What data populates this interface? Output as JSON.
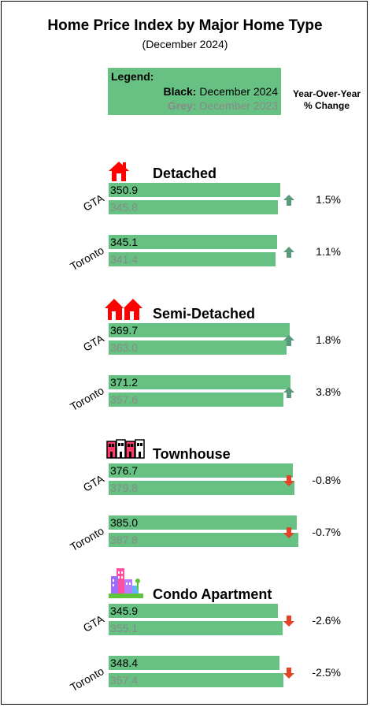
{
  "title": "Home Price Index by Major Home Type",
  "subtitle": "(December 2024)",
  "legend": {
    "title": "Legend:",
    "black_key": "Black:",
    "black_value": "December 2024",
    "grey_key": "Grey:",
    "grey_value": "December 2023"
  },
  "yoy_header": {
    "line1": "Year-Over-Year",
    "line2": "% Change"
  },
  "colors": {
    "bar": "#66c183",
    "up_arrow": "#5a9a7a",
    "down_arrow": "#e0452a",
    "prior_text": "#8a8a8a"
  },
  "chart_data": {
    "type": "bar",
    "orientation": "horizontal",
    "title": "Home Price Index by Major Home Type",
    "subtitle": "(December 2024)",
    "series_legend": [
      "Black: December 2024",
      "Grey: December 2023"
    ],
    "groups": [
      {
        "name": "Detached",
        "icon": "house-icon",
        "rows": [
          {
            "region": "GTA",
            "current": 350.9,
            "prior": 345.8,
            "change": "1.5%",
            "direction": "up"
          },
          {
            "region": "Toronto",
            "current": 345.1,
            "prior": 341.4,
            "change": "1.1%",
            "direction": "up"
          }
        ]
      },
      {
        "name": "Semi-Detached",
        "icon": "semi-detached-houses-icon",
        "rows": [
          {
            "region": "GTA",
            "current": 369.7,
            "prior": 363.0,
            "current_label": "369.7",
            "prior_label": "363.0",
            "change": "1.8%",
            "direction": "up"
          },
          {
            "region": "Toronto",
            "current": 371.2,
            "prior": 357.6,
            "change": "3.8%",
            "direction": "up"
          }
        ]
      },
      {
        "name": "Townhouse",
        "icon": "townhouse-icon",
        "rows": [
          {
            "region": "GTA",
            "current": 376.7,
            "prior": 379.8,
            "change": "-0.8%",
            "direction": "down"
          },
          {
            "region": "Toronto",
            "current": 385.0,
            "prior": 387.8,
            "current_label": "385.0",
            "change": "-0.7%",
            "direction": "down"
          }
        ]
      },
      {
        "name": "Condo Apartment",
        "icon": "condo-building-icon",
        "rows": [
          {
            "region": "GTA",
            "current": 345.9,
            "prior": 355.1,
            "change": "-2.6%",
            "direction": "down"
          },
          {
            "region": "Toronto",
            "current": 348.4,
            "prior": 357.4,
            "change": "-2.5%",
            "direction": "down"
          }
        ]
      }
    ]
  }
}
